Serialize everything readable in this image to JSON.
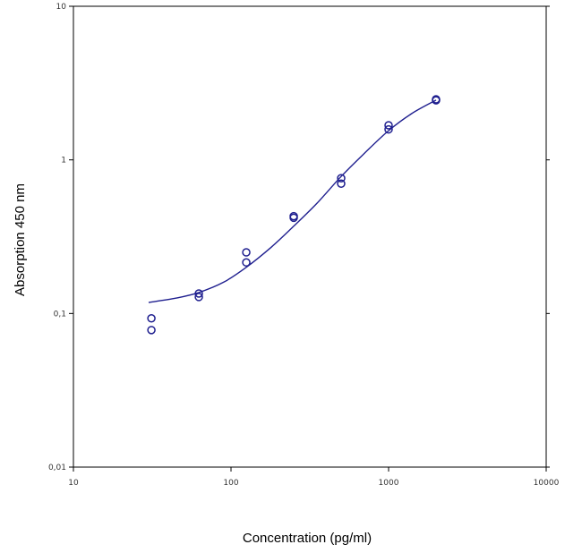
{
  "chart_data": {
    "type": "scatter",
    "title": "",
    "xlabel": "Concentration (pg/ml)",
    "ylabel": "Absorption 450 nm",
    "x_scale": "log",
    "y_scale": "log",
    "xlim": [
      10,
      10000
    ],
    "ylim": [
      0.01,
      10
    ],
    "x_ticks": [
      10,
      100,
      1000,
      10000
    ],
    "x_tick_labels": [
      "10",
      "100",
      "1000",
      "10000"
    ],
    "y_ticks": [
      0.01,
      0.1,
      1,
      10
    ],
    "y_tick_labels": [
      "0,01",
      "0,1",
      "1",
      "10"
    ],
    "grid": false,
    "legend": "none",
    "colors": {
      "series": "#1f1f8f",
      "frame": "#000000",
      "text": "#333333"
    },
    "points": [
      {
        "x": 31.25,
        "y": 0.093
      },
      {
        "x": 31.25,
        "y": 0.078
      },
      {
        "x": 62.5,
        "y": 0.135
      },
      {
        "x": 62.5,
        "y": 0.128
      },
      {
        "x": 125,
        "y": 0.25
      },
      {
        "x": 125,
        "y": 0.215
      },
      {
        "x": 250,
        "y": 0.43
      },
      {
        "x": 250,
        "y": 0.42
      },
      {
        "x": 500,
        "y": 0.76
      },
      {
        "x": 500,
        "y": 0.7
      },
      {
        "x": 1000,
        "y": 1.68
      },
      {
        "x": 1000,
        "y": 1.58
      },
      {
        "x": 2000,
        "y": 2.48
      },
      {
        "x": 2000,
        "y": 2.44
      }
    ],
    "fit_curve": [
      {
        "x": 30,
        "y": 0.118
      },
      {
        "x": 45,
        "y": 0.126
      },
      {
        "x": 62.5,
        "y": 0.137
      },
      {
        "x": 90,
        "y": 0.16
      },
      {
        "x": 125,
        "y": 0.2
      },
      {
        "x": 180,
        "y": 0.27
      },
      {
        "x": 250,
        "y": 0.37
      },
      {
        "x": 350,
        "y": 0.52
      },
      {
        "x": 500,
        "y": 0.78
      },
      {
        "x": 700,
        "y": 1.1
      },
      {
        "x": 1000,
        "y": 1.55
      },
      {
        "x": 1400,
        "y": 2.0
      },
      {
        "x": 2000,
        "y": 2.45
      }
    ]
  }
}
